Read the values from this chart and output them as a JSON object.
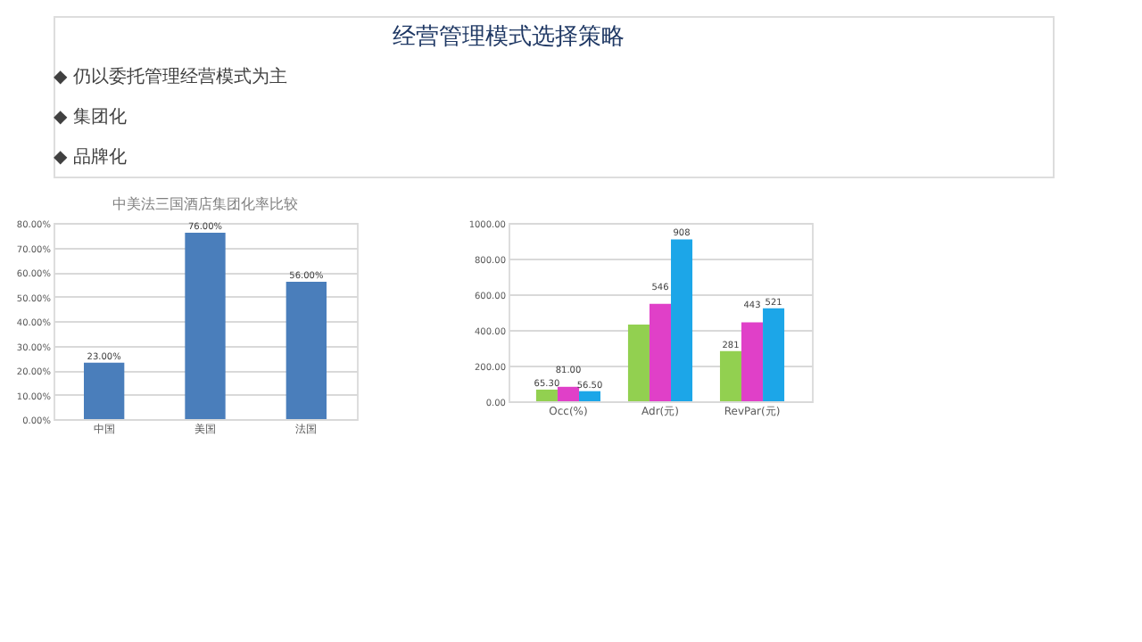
{
  "chart_data": [
    {
      "type": "bar",
      "title": "中美法三国酒店集团化率比较",
      "annotations": [
        "经营管理模式选择策略",
        "◆ 仍以委托管理经营模式为主",
        "◆ 集团化",
        "◆ 品牌化"
      ],
      "categories": [
        "中国",
        "美国",
        "法国"
      ],
      "values": [
        23,
        76,
        56
      ],
      "color": "#4a7ebb",
      "value_labels": [
        "23.00%",
        "76.00%",
        "56.00%"
      ],
      "ylim": [
        0,
        80
      ],
      "yticks": [
        {
          "value": 0,
          "label": "0.00%"
        },
        {
          "value": 10,
          "label": "10.00%"
        },
        {
          "value": 20,
          "label": "20.00%"
        },
        {
          "value": 30,
          "label": "30.00%"
        },
        {
          "value": 40,
          "label": "40.00%"
        },
        {
          "value": 50,
          "label": "50.00%"
        },
        {
          "value": 60,
          "label": "60.00%"
        },
        {
          "value": 70,
          "label": "70.00%"
        },
        {
          "value": 80,
          "label": "80.00%"
        }
      ],
      "grid": "y"
    },
    {
      "type": "bar",
      "categories": [
        "Occ(%)",
        "Adr(元)",
        "RevPar(元)"
      ],
      "series": [
        {
          "color": "#92d050",
          "values": [
            65.3,
            430,
            281
          ],
          "value_labels": [
            "65.30",
            null,
            "281"
          ]
        },
        {
          "color": "#e040c8",
          "values": [
            81,
            546,
            443
          ],
          "value_labels": [
            "81.00",
            "546",
            "443"
          ]
        },
        {
          "color": "#1ca6e8",
          "values": [
            56.5,
            908,
            521
          ],
          "value_labels": [
            "56.50",
            "908",
            "521"
          ]
        }
      ],
      "ylim": [
        0,
        1000
      ],
      "yticks": [
        {
          "value": 0,
          "label": "0.00"
        },
        {
          "value": 200,
          "label": "200.00"
        },
        {
          "value": 400,
          "label": "400.00"
        },
        {
          "value": 600,
          "label": "600.00"
        },
        {
          "value": 800,
          "label": "800.00"
        },
        {
          "value": 1000,
          "label": "1000.00"
        }
      ],
      "grid": "y"
    }
  ]
}
